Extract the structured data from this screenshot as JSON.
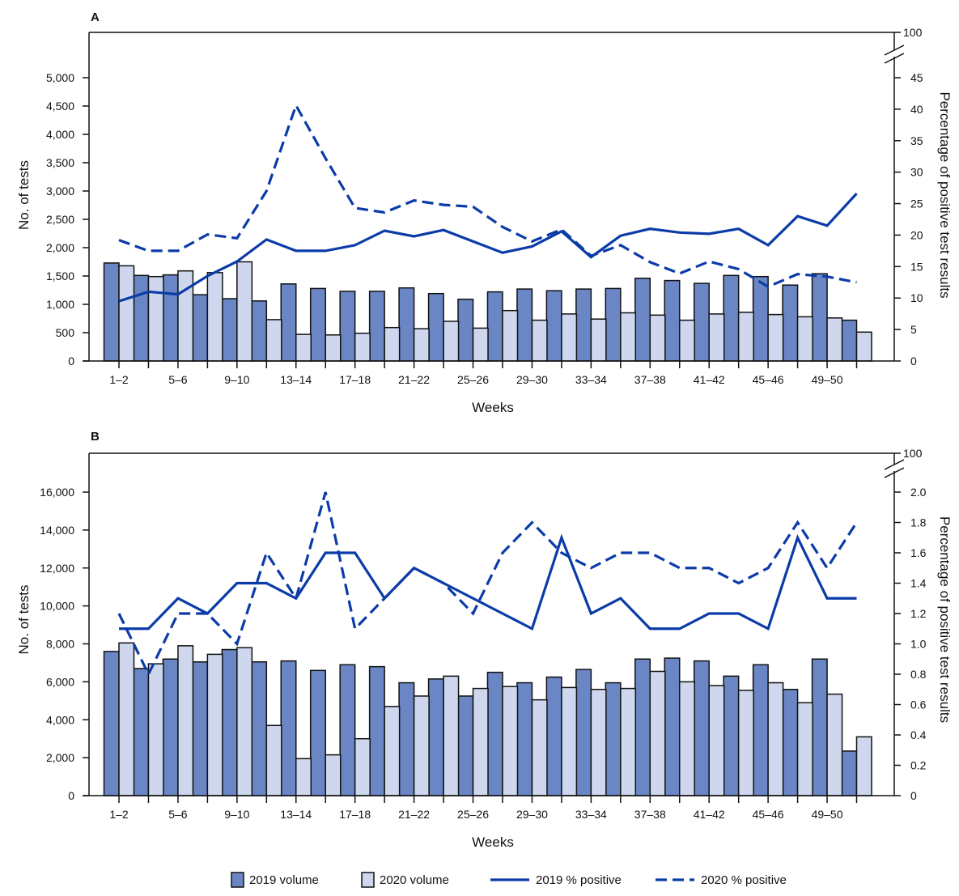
{
  "colors": {
    "bar_2019": "#6A86C4",
    "bar_2020": "#CED7EE",
    "line": "#0B3BA8"
  },
  "legend": [
    {
      "label": "2019 volume",
      "kind": "bar_2019"
    },
    {
      "label": "2020 volume",
      "kind": "bar_2020"
    },
    {
      "label": "2019 % positive",
      "kind": "solid"
    },
    {
      "label": "2020 % positive",
      "kind": "dashed"
    }
  ],
  "chart_data": [
    {
      "panel": "A",
      "type": "bar+line",
      "xlabel": "Weeks",
      "ylabel": "No. of tests",
      "y2label": "Percentage of positive test results",
      "categories": [
        "1–2",
        "3–4",
        "5–6",
        "7–8",
        "9–10",
        "11–12",
        "13–14",
        "15–16",
        "17–18",
        "19–20",
        "21–22",
        "23–24",
        "25–26",
        "27–28",
        "29–30",
        "31–32",
        "33–34",
        "35–36",
        "37–38",
        "39–40",
        "41–42",
        "43–44",
        "45–46",
        "47–48",
        "49–50",
        "51–52"
      ],
      "xtick_labels": [
        "1–2",
        "5–6",
        "9–10",
        "13–14",
        "17–18",
        "21–22",
        "25–26",
        "29–30",
        "33–34",
        "37–38",
        "41–42",
        "45–46",
        "49–50"
      ],
      "ylim": [
        0,
        5000
      ],
      "yticks": [
        "0",
        "500",
        "1,000",
        "1,500",
        "2,000",
        "2,500",
        "3,000",
        "3,500",
        "4,000",
        "4,500",
        "5,000"
      ],
      "y2lim": [
        0,
        45
      ],
      "y2ticks": [
        "0",
        "5",
        "10",
        "15",
        "20",
        "25",
        "30",
        "35",
        "40",
        "45"
      ],
      "y2_break_top": "100",
      "bars": [
        {
          "name": "2019 volume",
          "values": [
            1730,
            1510,
            1520,
            1170,
            1100,
            1060,
            1360,
            1280,
            1230,
            1230,
            1290,
            1190,
            1090,
            1220,
            1270,
            1240,
            1270,
            1280,
            1460,
            1420,
            1370,
            1510,
            1490,
            1340,
            1540,
            720
          ]
        },
        {
          "name": "2020 volume",
          "values": [
            1680,
            1490,
            1590,
            1560,
            1750,
            730,
            470,
            460,
            490,
            590,
            570,
            700,
            580,
            890,
            720,
            830,
            740,
            850,
            810,
            720,
            830,
            860,
            820,
            780,
            760,
            510
          ]
        }
      ],
      "lines": [
        {
          "name": "2019 % positive",
          "style": "solid",
          "values": [
            9.5,
            11.0,
            10.6,
            13.5,
            15.8,
            19.3,
            17.5,
            17.5,
            18.4,
            20.7,
            19.8,
            20.8,
            19.0,
            17.2,
            18.2,
            20.6,
            16.5,
            19.9,
            21.0,
            20.4,
            20.2,
            21.0,
            18.4,
            23.0,
            21.5,
            26.6
          ]
        },
        {
          "name": "2020 % positive",
          "style": "dashed",
          "values": [
            19.2,
            17.5,
            17.5,
            20.1,
            19.5,
            27.0,
            40.6,
            32.2,
            24.3,
            23.6,
            25.5,
            24.8,
            24.5,
            21.3,
            19.0,
            20.9,
            16.7,
            18.4,
            15.7,
            13.9,
            15.8,
            14.6,
            11.8,
            13.8,
            13.4,
            12.5
          ]
        }
      ]
    },
    {
      "panel": "B",
      "type": "bar+line",
      "xlabel": "Weeks",
      "ylabel": "No. of tests",
      "y2label": "Percentage of positive test results",
      "categories": [
        "1–2",
        "3–4",
        "5–6",
        "7–8",
        "9–10",
        "11–12",
        "13–14",
        "15–16",
        "17–18",
        "19–20",
        "21–22",
        "23–24",
        "25–26",
        "27–28",
        "29–30",
        "31–32",
        "33–34",
        "35–36",
        "37–38",
        "39–40",
        "41–42",
        "43–44",
        "45–46",
        "47–48",
        "49–50",
        "51–52"
      ],
      "xtick_labels": [
        "1–2",
        "5–6",
        "9–10",
        "13–14",
        "17–18",
        "21–22",
        "25–26",
        "29–30",
        "33–34",
        "37–38",
        "41–42",
        "45–46",
        "49–50"
      ],
      "ylim": [
        0,
        16000
      ],
      "yticks": [
        "0",
        "2,000",
        "4,000",
        "6,000",
        "8,000",
        "10,000",
        "12,000",
        "14,000",
        "16,000"
      ],
      "y2lim": [
        0,
        2.0
      ],
      "y2ticks": [
        "0",
        "0.2",
        "0.4",
        "0.6",
        "0.8",
        "1.0",
        "1.2",
        "1.4",
        "1.6",
        "1.8",
        "2.0"
      ],
      "y2_break_top": "100",
      "bars": [
        {
          "name": "2019 volume",
          "values": [
            7600,
            6700,
            7200,
            7050,
            7700,
            7050,
            7100,
            6600,
            6900,
            6800,
            5950,
            6150,
            5250,
            6500,
            5950,
            6250,
            6650,
            5950,
            7200,
            7250,
            7100,
            6300,
            6900,
            5600,
            7200,
            2350
          ]
        },
        {
          "name": "2020 volume",
          "values": [
            8050,
            6950,
            7900,
            7450,
            7800,
            3700,
            1950,
            2150,
            3000,
            4700,
            5250,
            6300,
            5650,
            5750,
            5050,
            5700,
            5600,
            5650,
            6550,
            6000,
            5800,
            5550,
            5950,
            4900,
            5350,
            3100
          ]
        }
      ],
      "lines": [
        {
          "name": "2019 % positive",
          "style": "solid",
          "values": [
            1.1,
            1.1,
            1.3,
            1.2,
            1.4,
            1.4,
            1.3,
            1.6,
            1.6,
            1.3,
            1.5,
            1.4,
            1.3,
            1.2,
            1.1,
            1.7,
            1.2,
            1.3,
            1.1,
            1.1,
            1.2,
            1.2,
            1.1,
            1.7,
            1.3,
            1.3
          ]
        },
        {
          "name": "2020 % positive",
          "style": "dashed",
          "values": [
            1.2,
            0.8,
            1.2,
            1.2,
            1.0,
            1.6,
            1.3,
            2.0,
            1.1,
            1.3,
            1.5,
            1.4,
            1.2,
            1.6,
            1.8,
            1.6,
            1.5,
            1.6,
            1.6,
            1.5,
            1.5,
            1.4,
            1.5,
            1.8,
            1.5,
            1.8
          ]
        }
      ]
    }
  ]
}
